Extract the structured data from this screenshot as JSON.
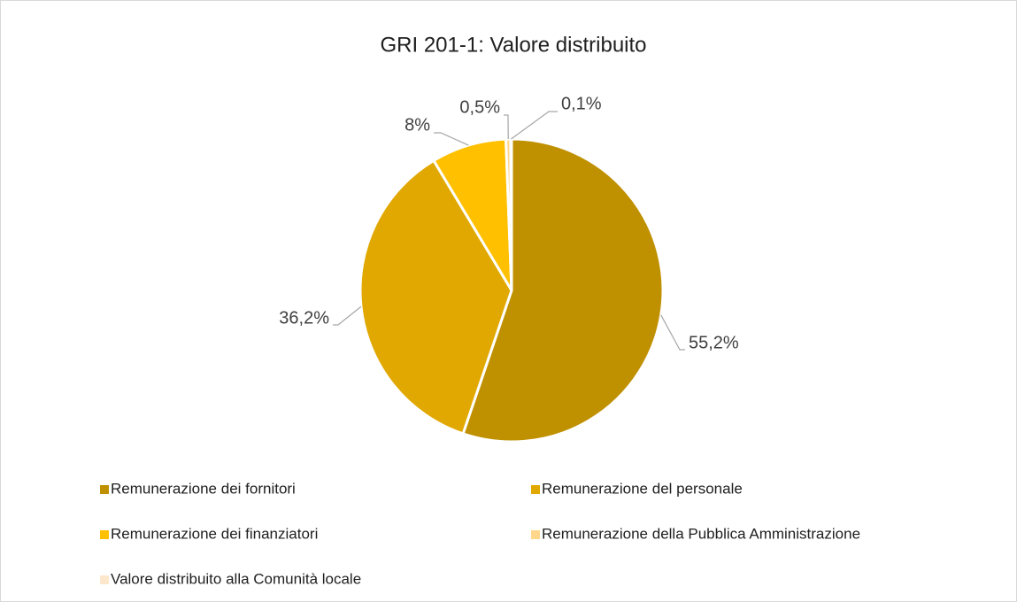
{
  "chart_data": {
    "type": "pie",
    "title": "GRI 201-1: Valore distribuito",
    "categories": [
      "Remunerazione dei fornitori",
      "Remunerazione del personale",
      "Remunerazione dei finanziatori",
      "Remunerazione della Pubblica Amministrazione",
      "Valore distribuito alla Comunità locale"
    ],
    "values": [
      55.2,
      36.2,
      8,
      0.5,
      0.1
    ],
    "value_labels": [
      "55,2%",
      "36,2%",
      "8%",
      "0,5%",
      "0,1%"
    ],
    "colors": [
      "#bf9000",
      "#e0a800",
      "#ffc000",
      "#ffd68a",
      "#fde7cc"
    ],
    "legend": "bottom"
  }
}
